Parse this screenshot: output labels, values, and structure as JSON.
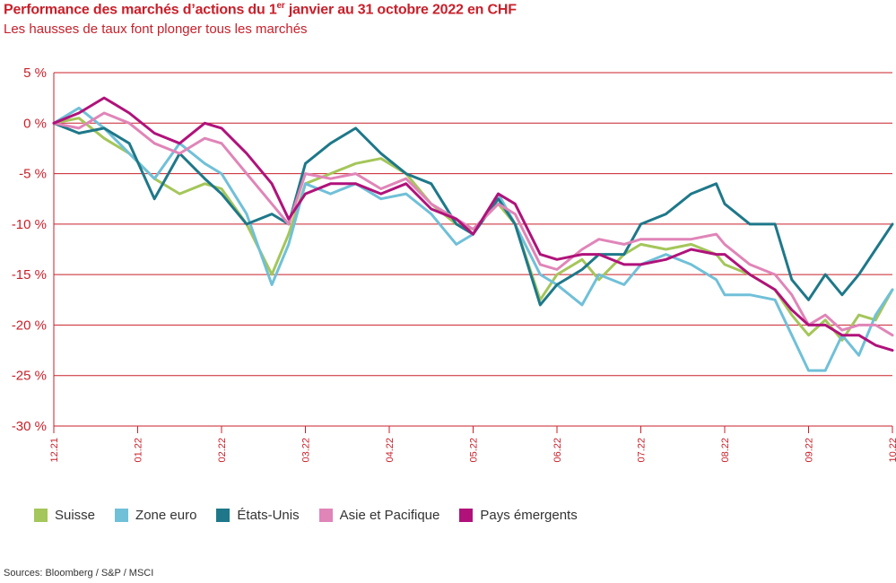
{
  "header": {
    "title_main": "Performance des marchés d’actions du 1",
    "title_sup": "er",
    "title_rest": " janvier au 31 octobre 2022 en CHF",
    "subtitle": "Les hausses de taux font plonger tous les marchés"
  },
  "source": "Sources: Bloomberg / S&P / MSCI",
  "colors": {
    "axis": "#c8202b",
    "grid": "#c8202b"
  },
  "chart_data": {
    "type": "line",
    "title": "Performance des marchés d’actions du 1er janvier au 31 octobre 2022 en CHF",
    "ylim": [
      -30,
      5
    ],
    "yticks": [
      5,
      0,
      -5,
      -10,
      -15,
      -20,
      -25,
      -30
    ],
    "ytick_labels": [
      "5 %",
      "0 %",
      "-5 %",
      "-10 %",
      "-15 %",
      "-20 %",
      "-25 %",
      "-30 %"
    ],
    "x_labels": [
      "12.21",
      "01.22",
      "02.22",
      "03.22",
      "04.22",
      "05.22",
      "06.22",
      "07.22",
      "08.22",
      "09.22",
      "10.22"
    ],
    "grid": "horizontal",
    "legend_position": "bottom",
    "series": [
      {
        "name": "Suisse",
        "color": "#a4c65a",
        "points": [
          [
            0,
            0
          ],
          [
            0.3,
            0.5
          ],
          [
            0.6,
            -1.5
          ],
          [
            0.9,
            -3
          ],
          [
            1.2,
            -5.5
          ],
          [
            1.5,
            -7
          ],
          [
            1.8,
            -6
          ],
          [
            2.0,
            -6.5
          ],
          [
            2.3,
            -10
          ],
          [
            2.6,
            -15
          ],
          [
            2.8,
            -11
          ],
          [
            3.0,
            -6
          ],
          [
            3.3,
            -5
          ],
          [
            3.6,
            -4
          ],
          [
            3.9,
            -3.5
          ],
          [
            4.2,
            -5
          ],
          [
            4.5,
            -8
          ],
          [
            4.8,
            -10
          ],
          [
            5.0,
            -10.5
          ],
          [
            5.3,
            -8
          ],
          [
            5.5,
            -10
          ],
          [
            5.8,
            -17.5
          ],
          [
            6.0,
            -15
          ],
          [
            6.3,
            -13.5
          ],
          [
            6.5,
            -15.5
          ],
          [
            6.8,
            -13
          ],
          [
            7.0,
            -12
          ],
          [
            7.3,
            -12.5
          ],
          [
            7.6,
            -12
          ],
          [
            7.9,
            -13
          ],
          [
            8.0,
            -14
          ],
          [
            8.3,
            -15
          ],
          [
            8.6,
            -16.5
          ],
          [
            8.8,
            -19
          ],
          [
            9.0,
            -21
          ],
          [
            9.2,
            -19.5
          ],
          [
            9.4,
            -21.5
          ],
          [
            9.6,
            -19
          ],
          [
            9.8,
            -19.5
          ],
          [
            10.0,
            -16.5
          ]
        ]
      },
      {
        "name": "Zone euro",
        "color": "#70c0d8",
        "points": [
          [
            0,
            0
          ],
          [
            0.3,
            1.5
          ],
          [
            0.6,
            -0.5
          ],
          [
            0.9,
            -3
          ],
          [
            1.2,
            -5.5
          ],
          [
            1.5,
            -2
          ],
          [
            1.8,
            -4
          ],
          [
            2.0,
            -5
          ],
          [
            2.3,
            -9
          ],
          [
            2.6,
            -16
          ],
          [
            2.8,
            -12
          ],
          [
            3.0,
            -6
          ],
          [
            3.3,
            -7
          ],
          [
            3.6,
            -6
          ],
          [
            3.9,
            -7.5
          ],
          [
            4.2,
            -7
          ],
          [
            4.5,
            -9
          ],
          [
            4.8,
            -12
          ],
          [
            5.0,
            -11
          ],
          [
            5.3,
            -7
          ],
          [
            5.5,
            -10
          ],
          [
            5.8,
            -15
          ],
          [
            6.0,
            -16
          ],
          [
            6.3,
            -18
          ],
          [
            6.5,
            -15
          ],
          [
            6.8,
            -16
          ],
          [
            7.0,
            -14
          ],
          [
            7.3,
            -13
          ],
          [
            7.6,
            -14
          ],
          [
            7.9,
            -15.5
          ],
          [
            8.0,
            -17
          ],
          [
            8.3,
            -17
          ],
          [
            8.6,
            -17.5
          ],
          [
            8.8,
            -21
          ],
          [
            9.0,
            -24.5
          ],
          [
            9.2,
            -24.5
          ],
          [
            9.4,
            -21
          ],
          [
            9.6,
            -23
          ],
          [
            9.8,
            -19
          ],
          [
            10.0,
            -16.5
          ]
        ]
      },
      {
        "name": "États-Unis",
        "color": "#1e7889",
        "points": [
          [
            0,
            0
          ],
          [
            0.3,
            -1
          ],
          [
            0.6,
            -0.5
          ],
          [
            0.9,
            -2
          ],
          [
            1.2,
            -7.5
          ],
          [
            1.5,
            -3
          ],
          [
            1.8,
            -5.5
          ],
          [
            2.0,
            -7
          ],
          [
            2.3,
            -10
          ],
          [
            2.6,
            -9
          ],
          [
            2.8,
            -10
          ],
          [
            3.0,
            -4
          ],
          [
            3.3,
            -2
          ],
          [
            3.6,
            -0.5
          ],
          [
            3.9,
            -3
          ],
          [
            4.2,
            -5
          ],
          [
            4.5,
            -6
          ],
          [
            4.8,
            -10
          ],
          [
            5.0,
            -11
          ],
          [
            5.3,
            -7.5
          ],
          [
            5.5,
            -10
          ],
          [
            5.8,
            -18
          ],
          [
            6.0,
            -16
          ],
          [
            6.3,
            -14.5
          ],
          [
            6.5,
            -13
          ],
          [
            6.8,
            -13
          ],
          [
            7.0,
            -10
          ],
          [
            7.3,
            -9
          ],
          [
            7.6,
            -7
          ],
          [
            7.9,
            -6
          ],
          [
            8.0,
            -8
          ],
          [
            8.3,
            -10
          ],
          [
            8.6,
            -10
          ],
          [
            8.8,
            -15.5
          ],
          [
            9.0,
            -17.5
          ],
          [
            9.2,
            -15
          ],
          [
            9.4,
            -17
          ],
          [
            9.6,
            -15
          ],
          [
            9.8,
            -12.5
          ],
          [
            10.0,
            -10
          ]
        ]
      },
      {
        "name": "Asie et Pacifique",
        "color": "#e085b8",
        "points": [
          [
            0,
            0
          ],
          [
            0.3,
            -0.5
          ],
          [
            0.6,
            1
          ],
          [
            0.9,
            0
          ],
          [
            1.2,
            -2
          ],
          [
            1.5,
            -3
          ],
          [
            1.8,
            -1.5
          ],
          [
            2.0,
            -2
          ],
          [
            2.3,
            -5
          ],
          [
            2.6,
            -8
          ],
          [
            2.8,
            -10
          ],
          [
            3.0,
            -5
          ],
          [
            3.3,
            -5.5
          ],
          [
            3.6,
            -5
          ],
          [
            3.9,
            -6.5
          ],
          [
            4.2,
            -5.5
          ],
          [
            4.5,
            -8
          ],
          [
            4.8,
            -9.5
          ],
          [
            5.0,
            -10.5
          ],
          [
            5.3,
            -8
          ],
          [
            5.5,
            -9
          ],
          [
            5.8,
            -14
          ],
          [
            6.0,
            -14.5
          ],
          [
            6.3,
            -12.5
          ],
          [
            6.5,
            -11.5
          ],
          [
            6.8,
            -12
          ],
          [
            7.0,
            -11.5
          ],
          [
            7.3,
            -11.5
          ],
          [
            7.6,
            -11.5
          ],
          [
            7.9,
            -11
          ],
          [
            8.0,
            -12
          ],
          [
            8.3,
            -14
          ],
          [
            8.6,
            -15
          ],
          [
            8.8,
            -17
          ],
          [
            9.0,
            -20
          ],
          [
            9.2,
            -19
          ],
          [
            9.4,
            -20.5
          ],
          [
            9.6,
            -20
          ],
          [
            9.8,
            -20
          ],
          [
            10.0,
            -21
          ]
        ]
      },
      {
        "name": "Pays émergents",
        "color": "#b0127a",
        "points": [
          [
            0,
            0
          ],
          [
            0.3,
            1
          ],
          [
            0.6,
            2.5
          ],
          [
            0.9,
            1
          ],
          [
            1.2,
            -1
          ],
          [
            1.5,
            -2
          ],
          [
            1.8,
            0
          ],
          [
            2.0,
            -0.5
          ],
          [
            2.3,
            -3
          ],
          [
            2.6,
            -6
          ],
          [
            2.8,
            -9.5
          ],
          [
            3.0,
            -7
          ],
          [
            3.3,
            -6
          ],
          [
            3.6,
            -6
          ],
          [
            3.9,
            -7
          ],
          [
            4.2,
            -6
          ],
          [
            4.5,
            -8.5
          ],
          [
            4.8,
            -9.5
          ],
          [
            5.0,
            -11
          ],
          [
            5.3,
            -7
          ],
          [
            5.5,
            -8
          ],
          [
            5.8,
            -13
          ],
          [
            6.0,
            -13.5
          ],
          [
            6.3,
            -13
          ],
          [
            6.5,
            -13
          ],
          [
            6.8,
            -14
          ],
          [
            7.0,
            -14
          ],
          [
            7.3,
            -13.5
          ],
          [
            7.6,
            -12.5
          ],
          [
            7.9,
            -13
          ],
          [
            8.0,
            -13
          ],
          [
            8.3,
            -15
          ],
          [
            8.6,
            -16.5
          ],
          [
            8.8,
            -18.5
          ],
          [
            9.0,
            -20
          ],
          [
            9.2,
            -20
          ],
          [
            9.4,
            -21
          ],
          [
            9.6,
            -21
          ],
          [
            9.8,
            -22
          ],
          [
            10.0,
            -22.5
          ]
        ]
      }
    ]
  }
}
